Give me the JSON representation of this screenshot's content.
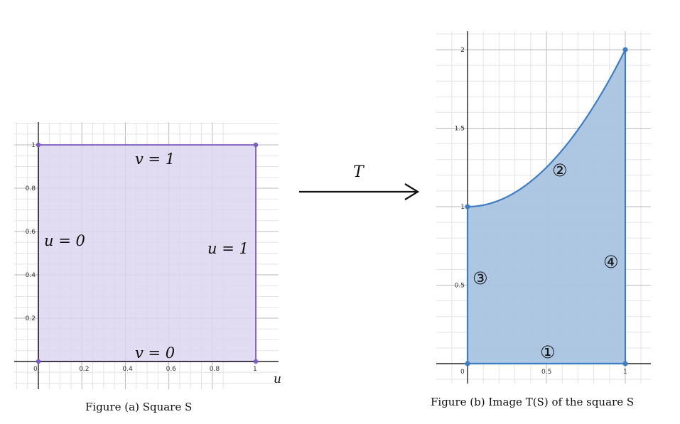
{
  "figure_a": {
    "caption": "Figure (a) Square S",
    "x_ticks": [
      "0",
      "0.2",
      "0.4",
      "0.6",
      "0.8",
      "1"
    ],
    "y_ticks": [
      "0.2",
      "0.4",
      "0.6",
      "0.8",
      "1"
    ],
    "axis_label_u": "u",
    "edge_labels": {
      "top": "v = 1",
      "bottom": "v = 0",
      "left": "u = 0",
      "right": "u = 1"
    },
    "fill_color": "#dcd6ee",
    "edge_color": "#7a5cc0",
    "square": {
      "u": [
        0,
        1
      ],
      "v": [
        0,
        1
      ]
    }
  },
  "arrow": {
    "label": "T"
  },
  "figure_b": {
    "caption": "Figure (b) Image T(S) of the square S",
    "x_ticks": [
      "0",
      "0.5",
      "1"
    ],
    "y_ticks": [
      "0.5",
      "1",
      "1.5",
      "2"
    ],
    "edge_markers": {
      "bottom": "①",
      "top": "②",
      "left": "③",
      "right": "④"
    },
    "fill_color": "#a9c4e1",
    "edge_color": "#3f7cc4",
    "region": {
      "x": [
        0,
        1
      ],
      "bottom": 0,
      "top_curve": "y = 1 + x^2"
    }
  }
}
